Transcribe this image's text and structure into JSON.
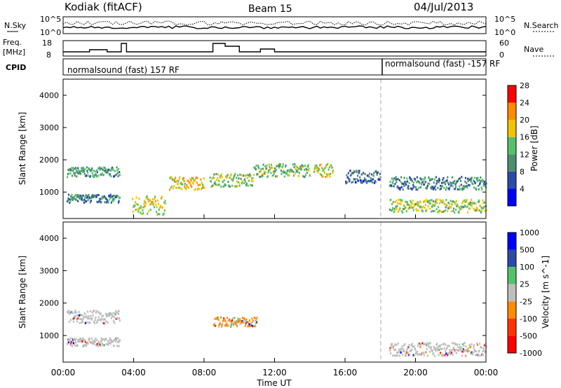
{
  "header": {
    "station": "Kodiak (fitACF)",
    "beam": "Beam 15",
    "date": "04/Jul/2013"
  },
  "strip_labels": {
    "nsky": "N.Sky",
    "nsearch": "N.Search",
    "freq_line1": "Freq.",
    "freq_line2": "[MHz]",
    "nave": "Nave",
    "cpid": "CPID"
  },
  "strip_ticks": {
    "noise_left_top": "10^5",
    "noise_left_bottom": "10^0",
    "noise_right_top": "10^5",
    "noise_right_bottom": "10^0",
    "freq_top": "18",
    "freq_bottom": "8",
    "nave_top": "60",
    "nave_bottom": "0"
  },
  "cpid_segments": [
    {
      "label": "normalsound (fast) 157 RF",
      "start_hour": 0,
      "end_hour": 18.1
    },
    {
      "label": "normalsound (fast) -157 RF",
      "start_hour": 18.1,
      "end_hour": 24
    }
  ],
  "colors": {
    "power": [
      "#0000ff",
      "#2b4ba8",
      "#4b8f6e",
      "#55c16a",
      "#f2c300",
      "#ff8c00",
      "#ff0000"
    ],
    "velocity": [
      "#0000ff",
      "#2b4ba8",
      "#55c16a",
      "#bebebe",
      "#ff8c00",
      "#ff3300",
      "#ff0000"
    ],
    "ground_scatter": "#bebebe"
  },
  "chart_data": [
    {
      "type": "heatmap",
      "title": "",
      "ylabel": "Slant Range [km]",
      "xlabel": "",
      "x_range_hours": [
        0,
        24
      ],
      "ylim": [
        180,
        4500
      ],
      "yticks": [
        "1000",
        "2000",
        "3000",
        "4000"
      ],
      "yticks_values": [
        1000,
        2000,
        3000,
        4000
      ],
      "colorbar": {
        "label": "Power [dB]",
        "ticks": [
          "4",
          "8",
          "12",
          "16",
          "20",
          "24",
          "28"
        ],
        "range": [
          0,
          30
        ]
      },
      "scatter_bands": [
        {
          "start_hour": 0.2,
          "end_hour": 3.2,
          "range_km": [
            1500,
            1800
          ],
          "value": 12
        },
        {
          "start_hour": 0.2,
          "end_hour": 3.2,
          "range_km": [
            700,
            950
          ],
          "value": 10
        },
        {
          "start_hour": 3.9,
          "end_hour": 5.8,
          "range_km": [
            300,
            900
          ],
          "value": 18
        },
        {
          "start_hour": 6.0,
          "end_hour": 8.0,
          "range_km": [
            1100,
            1500
          ],
          "value": 20
        },
        {
          "start_hour": 8.3,
          "end_hour": 10.8,
          "range_km": [
            1200,
            1600
          ],
          "value": 16
        },
        {
          "start_hour": 10.8,
          "end_hour": 14.0,
          "range_km": [
            1500,
            1900
          ],
          "value": 14
        },
        {
          "start_hour": 14.2,
          "end_hour": 15.3,
          "range_km": [
            1500,
            1900
          ],
          "value": 18
        },
        {
          "start_hour": 16.0,
          "end_hour": 18.0,
          "range_km": [
            1300,
            1700
          ],
          "value": 8
        },
        {
          "start_hour": 18.5,
          "end_hour": 24.0,
          "range_km": [
            400,
            800
          ],
          "value": 16
        },
        {
          "start_hour": 18.5,
          "end_hour": 24.0,
          "range_km": [
            1100,
            1500
          ],
          "value": 10
        }
      ]
    },
    {
      "type": "heatmap",
      "title": "",
      "ylabel": "Slant Range [km]",
      "xlabel": "Time UT",
      "x_range_hours": [
        0,
        24
      ],
      "xticks": [
        "00:00",
        "04:00",
        "08:00",
        "12:00",
        "16:00",
        "20:00",
        "00:00"
      ],
      "xticks_hours": [
        0,
        4,
        8,
        12,
        16,
        20,
        24
      ],
      "ylim": [
        180,
        4500
      ],
      "yticks": [
        "1000",
        "2000",
        "3000",
        "4000"
      ],
      "yticks_values": [
        1000,
        2000,
        3000,
        4000
      ],
      "colorbar": {
        "label": "Velocity [m s^-1]",
        "ticks": [
          "1000",
          "500",
          "100",
          "25",
          "-25",
          "-100",
          "-500",
          "-1000"
        ]
      },
      "scatter_bands": [
        {
          "start_hour": 0.2,
          "end_hour": 3.2,
          "range_km": [
            1400,
            1800
          ],
          "value": 0
        },
        {
          "start_hour": 0.2,
          "end_hour": 3.2,
          "range_km": [
            700,
            950
          ],
          "value": 0
        },
        {
          "start_hour": 8.5,
          "end_hour": 11.0,
          "range_km": [
            1300,
            1600
          ],
          "value": -100
        },
        {
          "start_hour": 18.5,
          "end_hour": 24.0,
          "range_km": [
            400,
            800
          ],
          "value": 0
        }
      ]
    }
  ]
}
